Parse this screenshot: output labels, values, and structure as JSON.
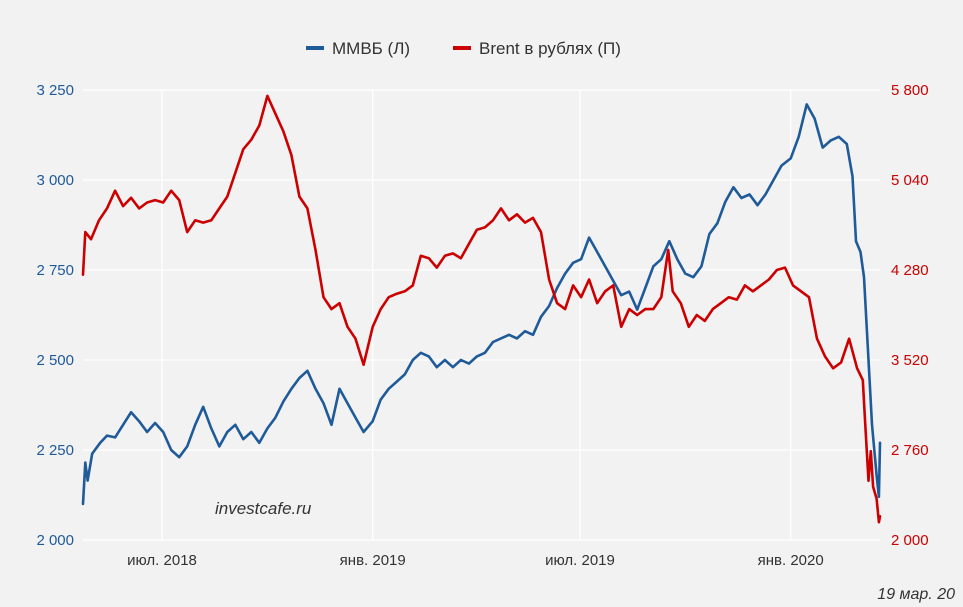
{
  "chart_data": {
    "type": "line",
    "title": "",
    "xlabel": "",
    "ylabel_left": "",
    "ylabel_right": "",
    "x_range": [
      "2018-04-23",
      "2020-03-19"
    ],
    "x_ticks": [
      {
        "date": "2018-07-01",
        "label": "июл. 2018"
      },
      {
        "date": "2019-01-01",
        "label": "янв. 2019"
      },
      {
        "date": "2019-07-01",
        "label": "июл. 2019"
      },
      {
        "date": "2020-01-01",
        "label": "янв. 2020"
      }
    ],
    "y_left": {
      "range": [
        2000,
        3300
      ],
      "ticks": [
        2000,
        2250,
        2500,
        2750,
        3000,
        3250
      ],
      "tick_labels": [
        "2 000",
        "2 250",
        "2 500",
        "2 750",
        "3 000",
        "3 250"
      ]
    },
    "y_right": {
      "range": [
        2000,
        5933
      ],
      "ticks": [
        2000,
        2760,
        3520,
        4280,
        5040,
        5800
      ],
      "tick_labels": [
        "2 000",
        "2 760",
        "3 520",
        "4 280",
        "5 040",
        "5 800"
      ]
    },
    "grid": true,
    "legend_position": "top-center",
    "series": [
      {
        "name": "ММВБ (Л)",
        "axis": "left",
        "color": "#1f5a99",
        "points": [
          [
            "2018-04-23",
            2100
          ],
          [
            "2018-04-25",
            2215
          ],
          [
            "2018-04-27",
            2165
          ],
          [
            "2018-05-01",
            2240
          ],
          [
            "2018-05-08",
            2270
          ],
          [
            "2018-05-14",
            2290
          ],
          [
            "2018-05-21",
            2285
          ],
          [
            "2018-05-28",
            2320
          ],
          [
            "2018-06-04",
            2355
          ],
          [
            "2018-06-11",
            2330
          ],
          [
            "2018-06-18",
            2300
          ],
          [
            "2018-06-25",
            2325
          ],
          [
            "2018-07-02",
            2300
          ],
          [
            "2018-07-09",
            2250
          ],
          [
            "2018-07-16",
            2230
          ],
          [
            "2018-07-23",
            2260
          ],
          [
            "2018-07-30",
            2320
          ],
          [
            "2018-08-06",
            2370
          ],
          [
            "2018-08-13",
            2310
          ],
          [
            "2018-08-20",
            2260
          ],
          [
            "2018-08-27",
            2300
          ],
          [
            "2018-09-03",
            2320
          ],
          [
            "2018-09-10",
            2280
          ],
          [
            "2018-09-17",
            2300
          ],
          [
            "2018-09-24",
            2270
          ],
          [
            "2018-10-01",
            2310
          ],
          [
            "2018-10-08",
            2340
          ],
          [
            "2018-10-15",
            2385
          ],
          [
            "2018-10-22",
            2420
          ],
          [
            "2018-10-29",
            2450
          ],
          [
            "2018-11-05",
            2470
          ],
          [
            "2018-11-12",
            2420
          ],
          [
            "2018-11-19",
            2380
          ],
          [
            "2018-11-26",
            2320
          ],
          [
            "2018-12-03",
            2420
          ],
          [
            "2018-12-10",
            2380
          ],
          [
            "2018-12-17",
            2340
          ],
          [
            "2018-12-24",
            2300
          ],
          [
            "2019-01-01",
            2330
          ],
          [
            "2019-01-08",
            2390
          ],
          [
            "2019-01-15",
            2420
          ],
          [
            "2019-01-22",
            2440
          ],
          [
            "2019-01-29",
            2460
          ],
          [
            "2019-02-05",
            2500
          ],
          [
            "2019-02-12",
            2520
          ],
          [
            "2019-02-19",
            2510
          ],
          [
            "2019-02-26",
            2480
          ],
          [
            "2019-03-05",
            2500
          ],
          [
            "2019-03-12",
            2480
          ],
          [
            "2019-03-19",
            2500
          ],
          [
            "2019-03-26",
            2490
          ],
          [
            "2019-04-02",
            2510
          ],
          [
            "2019-04-09",
            2520
          ],
          [
            "2019-04-16",
            2550
          ],
          [
            "2019-04-23",
            2560
          ],
          [
            "2019-04-30",
            2570
          ],
          [
            "2019-05-07",
            2560
          ],
          [
            "2019-05-14",
            2580
          ],
          [
            "2019-05-21",
            2570
          ],
          [
            "2019-05-28",
            2620
          ],
          [
            "2019-06-04",
            2650
          ],
          [
            "2019-06-11",
            2700
          ],
          [
            "2019-06-18",
            2740
          ],
          [
            "2019-06-25",
            2770
          ],
          [
            "2019-07-02",
            2780
          ],
          [
            "2019-07-09",
            2840
          ],
          [
            "2019-07-16",
            2800
          ],
          [
            "2019-07-23",
            2760
          ],
          [
            "2019-07-30",
            2720
          ],
          [
            "2019-08-06",
            2680
          ],
          [
            "2019-08-13",
            2690
          ],
          [
            "2019-08-20",
            2640
          ],
          [
            "2019-08-27",
            2700
          ],
          [
            "2019-09-03",
            2760
          ],
          [
            "2019-09-10",
            2780
          ],
          [
            "2019-09-17",
            2830
          ],
          [
            "2019-09-24",
            2780
          ],
          [
            "2019-10-01",
            2740
          ],
          [
            "2019-10-08",
            2730
          ],
          [
            "2019-10-15",
            2760
          ],
          [
            "2019-10-22",
            2850
          ],
          [
            "2019-10-29",
            2880
          ],
          [
            "2019-11-05",
            2940
          ],
          [
            "2019-11-12",
            2980
          ],
          [
            "2019-11-19",
            2950
          ],
          [
            "2019-11-26",
            2960
          ],
          [
            "2019-12-03",
            2930
          ],
          [
            "2019-12-10",
            2960
          ],
          [
            "2019-12-17",
            3000
          ],
          [
            "2019-12-24",
            3040
          ],
          [
            "2020-01-01",
            3060
          ],
          [
            "2020-01-08",
            3120
          ],
          [
            "2020-01-15",
            3210
          ],
          [
            "2020-01-22",
            3170
          ],
          [
            "2020-01-29",
            3090
          ],
          [
            "2020-02-05",
            3110
          ],
          [
            "2020-02-12",
            3120
          ],
          [
            "2020-02-19",
            3100
          ],
          [
            "2020-02-24",
            3010
          ],
          [
            "2020-02-27",
            2830
          ],
          [
            "2020-03-02",
            2800
          ],
          [
            "2020-03-05",
            2730
          ],
          [
            "2020-03-09",
            2500
          ],
          [
            "2020-03-12",
            2320
          ],
          [
            "2020-03-16",
            2180
          ],
          [
            "2020-03-18",
            2120
          ],
          [
            "2020-03-19",
            2270
          ]
        ]
      },
      {
        "name": "Brent в рублях (П)",
        "axis": "right",
        "color": "#cc0000",
        "points": [
          [
            "2018-04-23",
            4240
          ],
          [
            "2018-04-25",
            4600
          ],
          [
            "2018-04-30",
            4540
          ],
          [
            "2018-05-07",
            4700
          ],
          [
            "2018-05-14",
            4800
          ],
          [
            "2018-05-21",
            4950
          ],
          [
            "2018-05-28",
            4820
          ],
          [
            "2018-06-04",
            4890
          ],
          [
            "2018-06-11",
            4800
          ],
          [
            "2018-06-18",
            4850
          ],
          [
            "2018-06-25",
            4870
          ],
          [
            "2018-07-02",
            4850
          ],
          [
            "2018-07-09",
            4950
          ],
          [
            "2018-07-16",
            4870
          ],
          [
            "2018-07-23",
            4600
          ],
          [
            "2018-07-30",
            4700
          ],
          [
            "2018-08-06",
            4680
          ],
          [
            "2018-08-13",
            4700
          ],
          [
            "2018-08-20",
            4800
          ],
          [
            "2018-08-27",
            4900
          ],
          [
            "2018-09-03",
            5100
          ],
          [
            "2018-09-10",
            5300
          ],
          [
            "2018-09-17",
            5380
          ],
          [
            "2018-09-24",
            5500
          ],
          [
            "2018-10-01",
            5750
          ],
          [
            "2018-10-08",
            5600
          ],
          [
            "2018-10-15",
            5450
          ],
          [
            "2018-10-22",
            5250
          ],
          [
            "2018-10-29",
            4900
          ],
          [
            "2018-11-05",
            4800
          ],
          [
            "2018-11-12",
            4450
          ],
          [
            "2018-11-19",
            4050
          ],
          [
            "2018-11-26",
            3950
          ],
          [
            "2018-12-03",
            4000
          ],
          [
            "2018-12-10",
            3800
          ],
          [
            "2018-12-17",
            3700
          ],
          [
            "2018-12-24",
            3480
          ],
          [
            "2019-01-01",
            3800
          ],
          [
            "2019-01-08",
            3950
          ],
          [
            "2019-01-15",
            4050
          ],
          [
            "2019-01-22",
            4080
          ],
          [
            "2019-01-29",
            4100
          ],
          [
            "2019-02-05",
            4150
          ],
          [
            "2019-02-12",
            4400
          ],
          [
            "2019-02-19",
            4380
          ],
          [
            "2019-02-26",
            4300
          ],
          [
            "2019-03-05",
            4400
          ],
          [
            "2019-03-12",
            4420
          ],
          [
            "2019-03-19",
            4380
          ],
          [
            "2019-03-26",
            4500
          ],
          [
            "2019-04-02",
            4620
          ],
          [
            "2019-04-09",
            4640
          ],
          [
            "2019-04-16",
            4700
          ],
          [
            "2019-04-23",
            4800
          ],
          [
            "2019-04-30",
            4700
          ],
          [
            "2019-05-07",
            4750
          ],
          [
            "2019-05-14",
            4680
          ],
          [
            "2019-05-21",
            4720
          ],
          [
            "2019-05-28",
            4600
          ],
          [
            "2019-06-04",
            4200
          ],
          [
            "2019-06-11",
            4000
          ],
          [
            "2019-06-18",
            3950
          ],
          [
            "2019-06-25",
            4150
          ],
          [
            "2019-07-02",
            4050
          ],
          [
            "2019-07-09",
            4200
          ],
          [
            "2019-07-16",
            4000
          ],
          [
            "2019-07-23",
            4100
          ],
          [
            "2019-07-30",
            4150
          ],
          [
            "2019-08-06",
            3800
          ],
          [
            "2019-08-13",
            3950
          ],
          [
            "2019-08-20",
            3900
          ],
          [
            "2019-08-27",
            3950
          ],
          [
            "2019-09-03",
            3950
          ],
          [
            "2019-09-10",
            4050
          ],
          [
            "2019-09-16",
            4450
          ],
          [
            "2019-09-20",
            4100
          ],
          [
            "2019-09-27",
            4000
          ],
          [
            "2019-10-04",
            3800
          ],
          [
            "2019-10-11",
            3900
          ],
          [
            "2019-10-18",
            3850
          ],
          [
            "2019-10-25",
            3950
          ],
          [
            "2019-11-01",
            4000
          ],
          [
            "2019-11-08",
            4050
          ],
          [
            "2019-11-15",
            4030
          ],
          [
            "2019-11-22",
            4150
          ],
          [
            "2019-11-29",
            4100
          ],
          [
            "2019-12-06",
            4150
          ],
          [
            "2019-12-13",
            4200
          ],
          [
            "2019-12-20",
            4280
          ],
          [
            "2019-12-27",
            4300
          ],
          [
            "2020-01-03",
            4150
          ],
          [
            "2020-01-10",
            4100
          ],
          [
            "2020-01-17",
            4050
          ],
          [
            "2020-01-24",
            3700
          ],
          [
            "2020-01-31",
            3550
          ],
          [
            "2020-02-07",
            3450
          ],
          [
            "2020-02-14",
            3500
          ],
          [
            "2020-02-21",
            3700
          ],
          [
            "2020-02-28",
            3450
          ],
          [
            "2020-03-04",
            3350
          ],
          [
            "2020-03-06",
            3000
          ],
          [
            "2020-03-09",
            2500
          ],
          [
            "2020-03-11",
            2750
          ],
          [
            "2020-03-13",
            2450
          ],
          [
            "2020-03-16",
            2350
          ],
          [
            "2020-03-18",
            2150
          ],
          [
            "2020-03-19",
            2200
          ]
        ]
      }
    ]
  },
  "watermark": "investcafe.ru",
  "date_note": "19 мар. 20"
}
